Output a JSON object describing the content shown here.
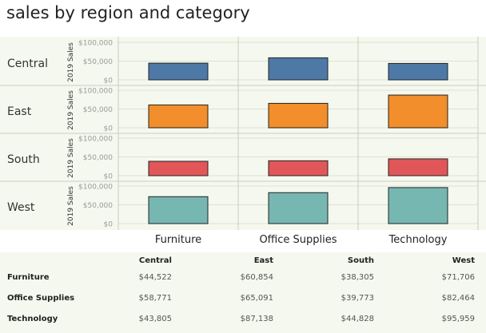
{
  "title": "sales by region and category",
  "chart_data": {
    "type": "bar",
    "title": "sales by region and category",
    "row_dimension": [
      "Central",
      "East",
      "South",
      "West"
    ],
    "categories": [
      "Furniture",
      "Office Supplies",
      "Technology"
    ],
    "ylabel": "2019 Sales",
    "ylim": [
      0,
      100000
    ],
    "y_ticks": [
      "$0",
      "$50,000",
      "$100,000"
    ],
    "grid": true,
    "series": [
      {
        "name": "Central",
        "color": "#4e79a7",
        "values": [
          44522,
          58771,
          43805
        ]
      },
      {
        "name": "East",
        "color": "#f28e2b",
        "values": [
          60854,
          65091,
          87138
        ]
      },
      {
        "name": "South",
        "color": "#e15759",
        "values": [
          38305,
          39773,
          44828
        ]
      },
      {
        "name": "West",
        "color": "#76b7b2",
        "values": [
          71706,
          82464,
          95959
        ]
      }
    ]
  },
  "table": {
    "columns": [
      "Central",
      "East",
      "South",
      "West"
    ],
    "rows": [
      {
        "label": "Furniture",
        "values": [
          "$44,522",
          "$60,854",
          "$38,305",
          "$71,706"
        ]
      },
      {
        "label": "Office Supplies",
        "values": [
          "$58,771",
          "$65,091",
          "$39,773",
          "$82,464"
        ]
      },
      {
        "label": "Technology",
        "values": [
          "$43,805",
          "$87,138",
          "$44,828",
          "$95,959"
        ]
      }
    ]
  }
}
